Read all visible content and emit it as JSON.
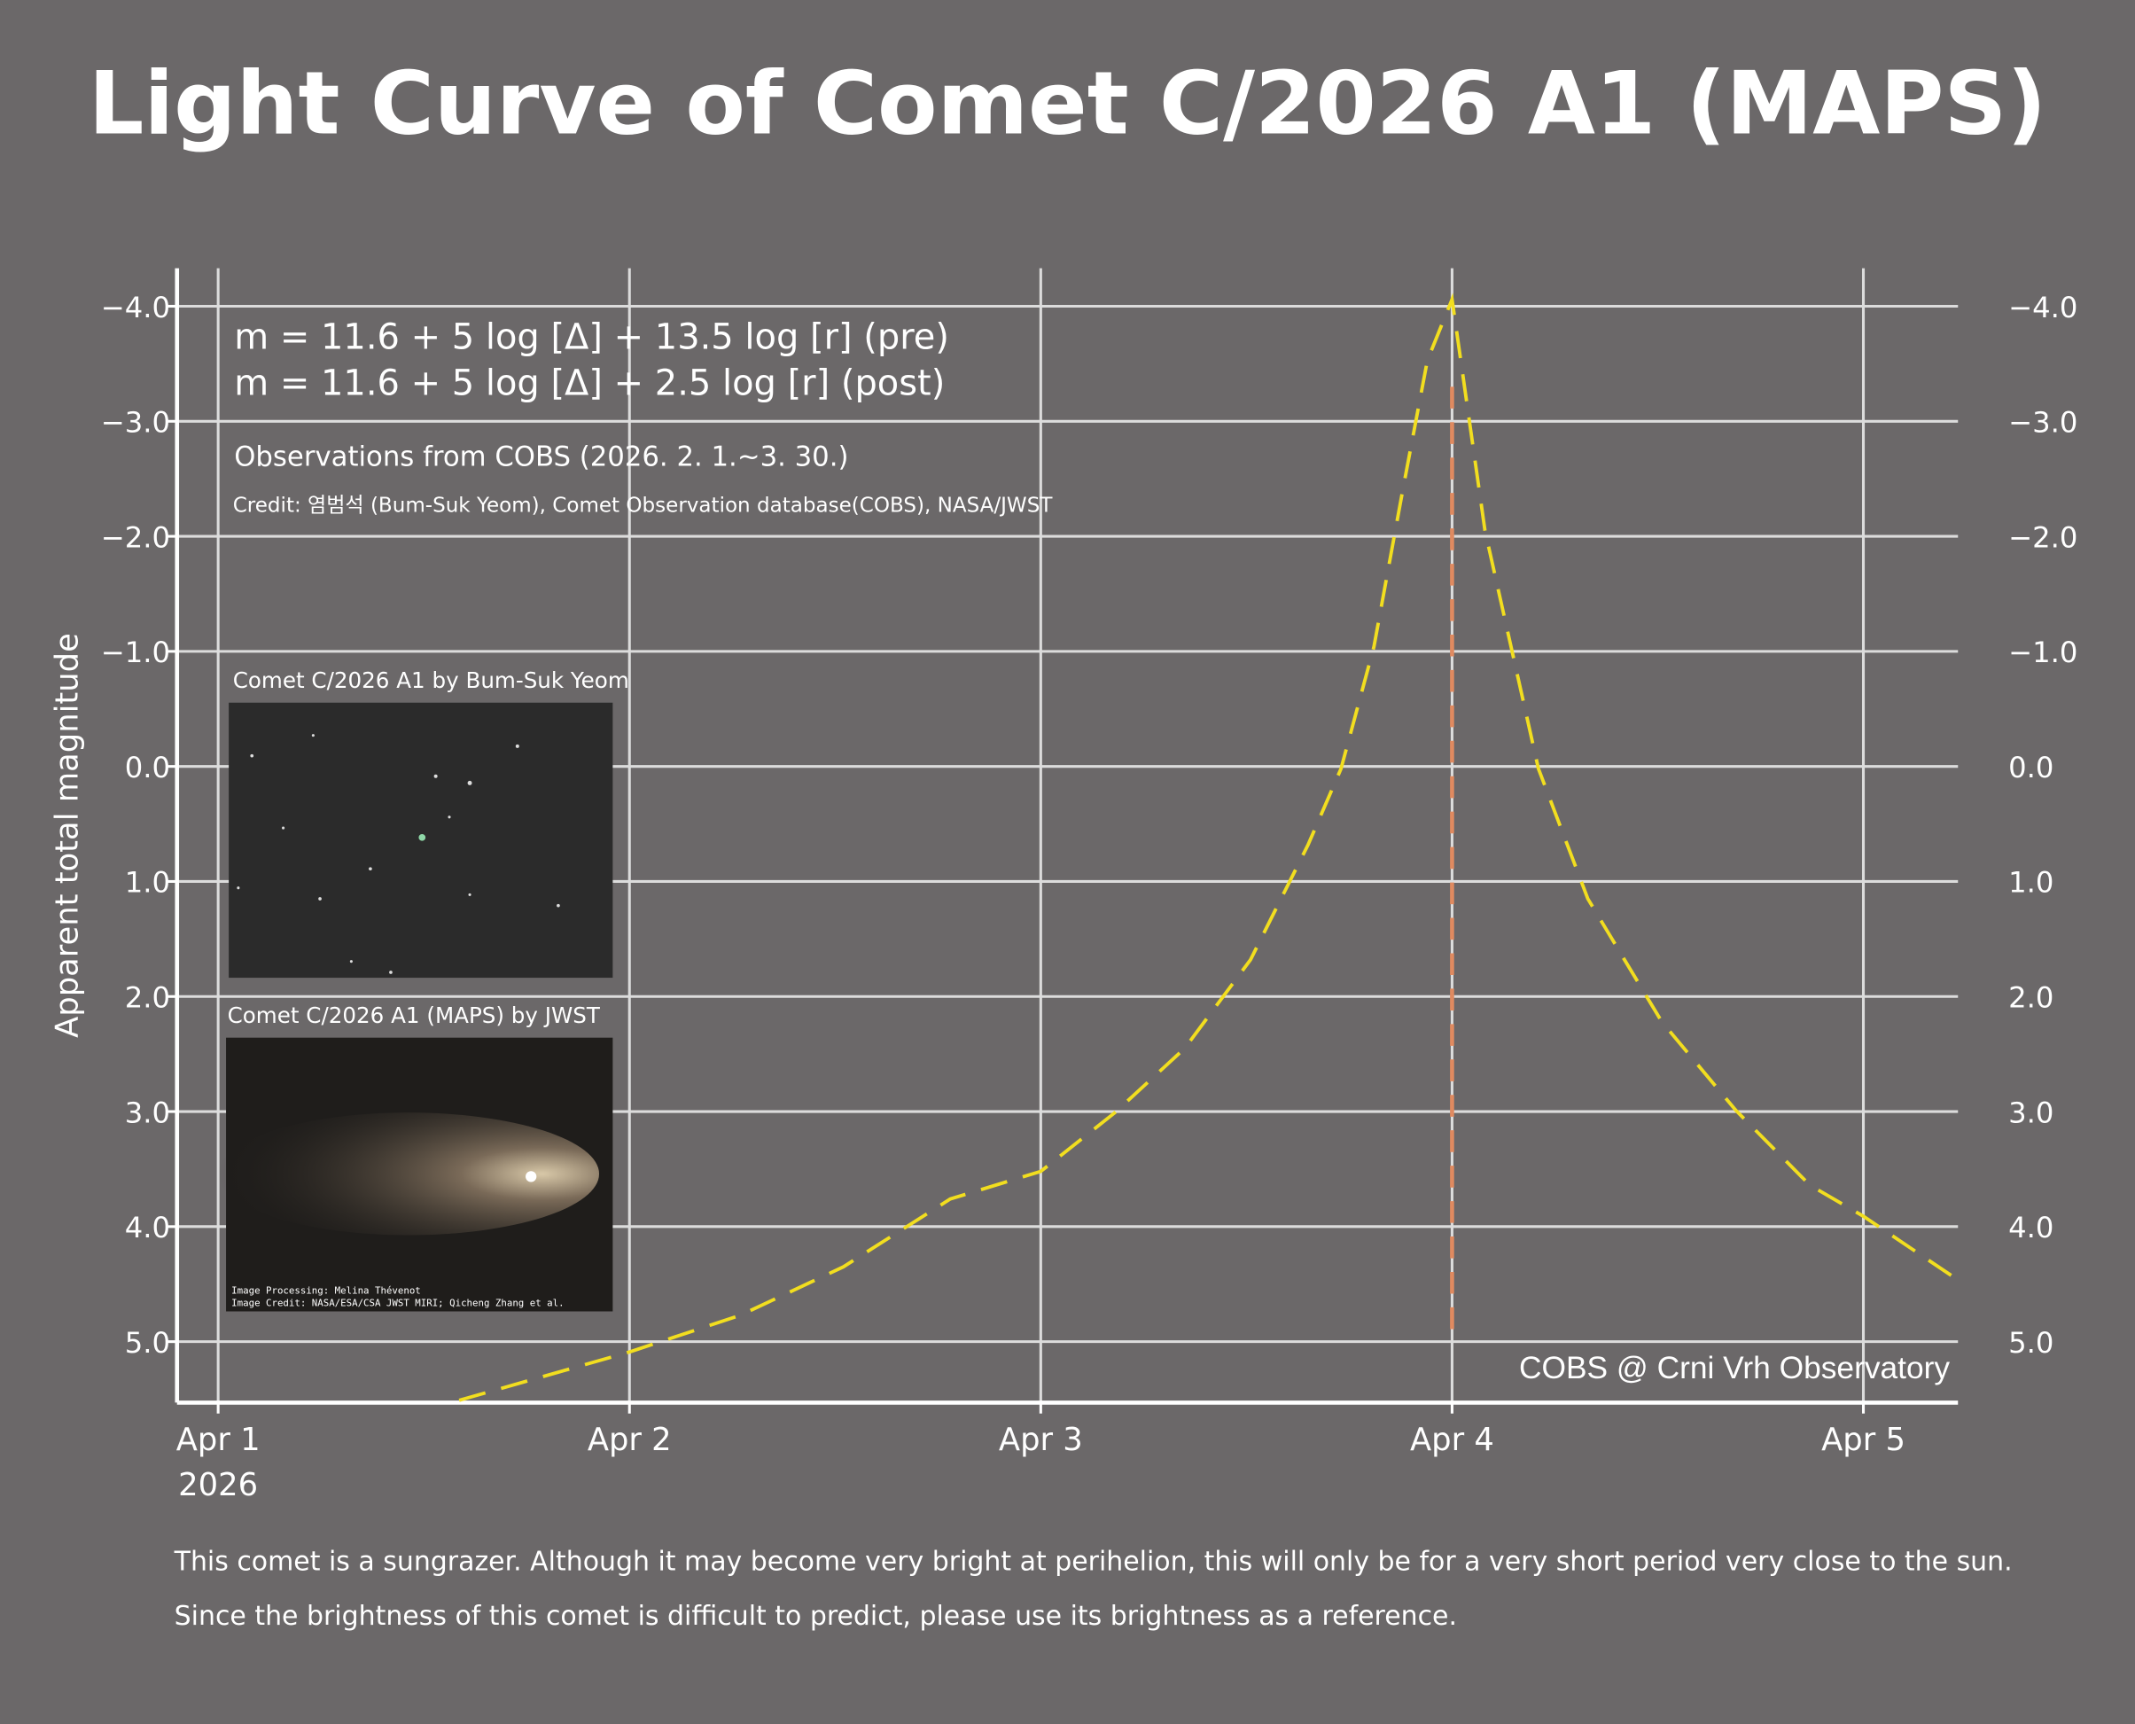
{
  "chart_data": {
    "type": "line",
    "title": "Light Curve of Comet C/2026 A1 (MAPS)",
    "y_label": "Apparent total magnitude",
    "y_inverted": true,
    "formula_pre": "m = 11.6 + 5 log [Δ]  + 13.5 log [r]  (pre)",
    "formula_post": "m = 11.6 + 5 log [Δ]  + 2.5 log [r]  (post)",
    "observations": "Observations from COBS (2026. 2. 1.~3. 30.)",
    "credit": "Credit: 염범석 (Bum-Suk Yeom), Comet Observation database(COBS), NASA/JWST",
    "image1_caption": "Comet C/2026 A1 by Bum-Suk Yeom",
    "image2_caption": "Comet C/2026 A1 (MAPS) by JWST",
    "image2_credit_1": "Image Processing: Melina Thévenot",
    "image2_credit_2": "Image Credit: NASA/ESA/CSA JWST MIRI; Qicheng Zhang et al.",
    "source": "COBS @ Crni Vrh Observatory",
    "note_1": "This comet is a sungrazer. Although it may become very bright at perihelion, this will only be for a very short period very close to the sun.",
    "note_2": "Since the brightness of this comet is difficult to predict, please use its brightness as a reference.",
    "x_year_label": "2026",
    "xlim": [
      -0.1,
      4.23
    ],
    "xticks": [
      {
        "value": 0,
        "label": "Apr 1"
      },
      {
        "value": 1,
        "label": "Apr 2"
      },
      {
        "value": 2,
        "label": "Apr 3"
      },
      {
        "value": 3,
        "label": "Apr 4"
      },
      {
        "value": 4,
        "label": "Apr 5"
      }
    ],
    "ylim": [
      -4.33,
      5.53
    ],
    "yticks": [
      {
        "value": -4,
        "label": "−4.0"
      },
      {
        "value": -3,
        "label": "−3.0"
      },
      {
        "value": -2,
        "label": "−2.0"
      },
      {
        "value": -1,
        "label": "−1.0"
      },
      {
        "value": 0,
        "label": "0.0"
      },
      {
        "value": 1,
        "label": "1.0"
      },
      {
        "value": 2,
        "label": "2.0"
      },
      {
        "value": 3,
        "label": "3.0"
      },
      {
        "value": 4,
        "label": "4.0"
      },
      {
        "value": 5,
        "label": "5.0"
      }
    ],
    "grid": true,
    "perihelion_x": 3,
    "perihelion_ylim": [
      -3.3,
      4.9
    ],
    "perihelion_color": "#e08a60",
    "series": [
      {
        "color": "#f2de1f",
        "x": [
          0.586,
          1,
          1.27,
          1.52,
          1.78,
          2,
          2.18,
          2.35,
          2.51,
          2.65,
          2.73,
          2.81,
          2.88,
          2.94,
          3,
          3.08,
          3.21,
          3.33,
          3.51,
          3.69,
          3.87,
          4,
          4.22
        ],
        "values": [
          5.51,
          5.09,
          4.77,
          4.35,
          3.76,
          3.52,
          3.01,
          2.45,
          1.68,
          0.68,
          0.02,
          -1.04,
          -2.4,
          -3.53,
          -4.06,
          -2.05,
          0.02,
          1.15,
          2.22,
          2.99,
          3.64,
          3.91,
          4.44
        ]
      }
    ]
  }
}
